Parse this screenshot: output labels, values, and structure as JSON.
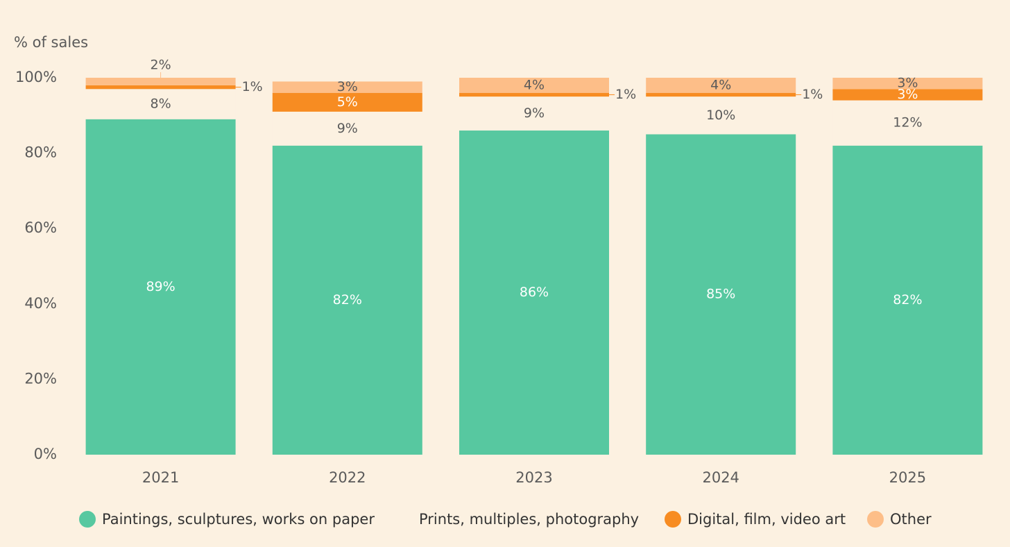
{
  "chart_data": {
    "type": "stacked-bar",
    "y_label": "% of sales",
    "categories": [
      "2021",
      "2022",
      "2023",
      "2024",
      "2025"
    ],
    "series": [
      {
        "name": "Paintings, sculptures, works on paper",
        "color": "#57c8a0",
        "values": [
          89,
          82,
          86,
          85,
          82
        ],
        "value_labels": [
          "89%",
          "82%",
          "86%",
          "85%",
          "82%"
        ]
      },
      {
        "name": "Prints, multiples, photography",
        "color": "#fcf1e1",
        "values": [
          8,
          9,
          9,
          10,
          12
        ],
        "value_labels": [
          "8%",
          "9%",
          "9%",
          "10%",
          "12%"
        ]
      },
      {
        "name": "Digital, film, video art",
        "color": "#f78c22",
        "values": [
          1,
          5,
          1,
          1,
          3
        ],
        "value_labels": [
          "1%",
          "5%",
          "1%",
          "1%",
          "3%"
        ]
      },
      {
        "name": "Other",
        "color": "#fdbe88",
        "values": [
          2,
          3,
          4,
          4,
          3
        ],
        "value_labels": [
          "2%",
          "3%",
          "4%",
          "4%",
          "3%"
        ]
      }
    ],
    "ylim": [
      0,
      100
    ],
    "yticks": [
      {
        "value": 0,
        "label": "0%"
      },
      {
        "value": 20,
        "label": "20%"
      },
      {
        "value": 40,
        "label": "40%"
      },
      {
        "value": 60,
        "label": "60%"
      },
      {
        "value": 80,
        "label": "80%"
      },
      {
        "value": 100,
        "label": "100%"
      }
    ],
    "grid": false
  }
}
